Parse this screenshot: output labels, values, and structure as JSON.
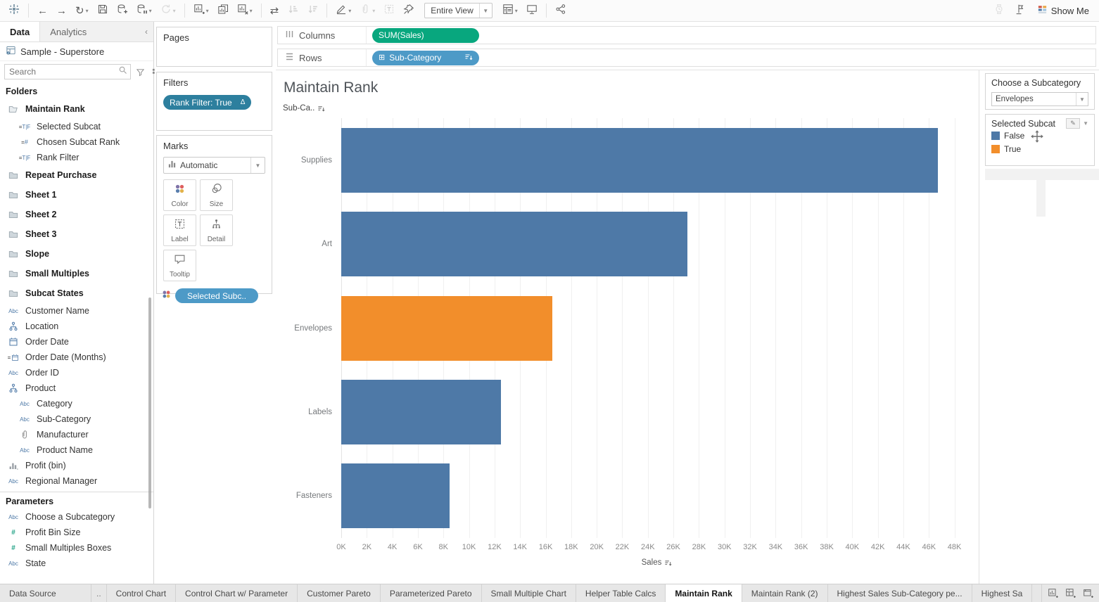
{
  "toolbar": {
    "left_icons": [
      {
        "name": "tableau-logo",
        "caret": false,
        "disabled": false,
        "group_after": true
      },
      {
        "name": "undo",
        "caret": false,
        "disabled": false
      },
      {
        "name": "redo",
        "caret": false,
        "disabled": false
      },
      {
        "name": "replay",
        "caret": true,
        "disabled": false
      },
      {
        "name": "save",
        "caret": false,
        "disabled": false
      },
      {
        "name": "add-data-source",
        "caret": false,
        "disabled": false
      },
      {
        "name": "pause-auto-updates",
        "caret": true,
        "disabled": false
      },
      {
        "name": "run-auto-updates",
        "caret": true,
        "disabled": true,
        "group_after": true
      },
      {
        "name": "new-worksheet",
        "caret": true,
        "disabled": false
      },
      {
        "name": "duplicate-sheet",
        "caret": false,
        "disabled": false
      },
      {
        "name": "clear-sheet",
        "caret": true,
        "disabled": false,
        "group_after": true
      },
      {
        "name": "swap-rows-columns",
        "caret": false,
        "disabled": false
      },
      {
        "name": "sort-ascending",
        "caret": false,
        "disabled": true
      },
      {
        "name": "sort-descending",
        "caret": false,
        "disabled": true,
        "group_after": true
      },
      {
        "name": "highlight",
        "caret": true,
        "disabled": false
      },
      {
        "name": "group-members",
        "caret": true,
        "disabled": true
      },
      {
        "name": "show-mark-labels",
        "caret": false,
        "disabled": true
      },
      {
        "name": "fix-axes",
        "caret": false,
        "disabled": false
      }
    ],
    "fit_selector": {
      "value": "Entire View"
    },
    "mid_icons": [
      {
        "name": "show-hide-cards",
        "caret": true,
        "disabled": false
      },
      {
        "name": "presentation-mode",
        "caret": false,
        "disabled": false,
        "group_after": true
      },
      {
        "name": "share-workbook",
        "caret": false,
        "disabled": false
      }
    ],
    "right_icons": [
      {
        "name": "watch-performance",
        "caret": false,
        "disabled": true
      },
      {
        "name": "flag",
        "caret": false,
        "disabled": false
      }
    ],
    "show_me_label": "Show Me"
  },
  "sidebar": {
    "tabs": [
      {
        "label": "Data",
        "active": true
      },
      {
        "label": "Analytics",
        "active": false
      }
    ],
    "collapse_glyph": "‹",
    "datasource": "Sample - Superstore",
    "search_placeholder": "Search",
    "folders_header": "Folders",
    "parameters_header": "Parameters",
    "items": [
      {
        "icon": "folder-open",
        "label": "Maintain Rank",
        "bold": true
      },
      {
        "icon": "calc-bool",
        "label": "Selected Subcat",
        "indent": 1
      },
      {
        "icon": "calc-num",
        "label": "Chosen Subcat Rank",
        "indent": 1
      },
      {
        "icon": "calc-bool",
        "label": "Rank Filter",
        "indent": 1
      },
      {
        "icon": "folder",
        "label": "Repeat Purchase",
        "bold": true
      },
      {
        "icon": "folder",
        "label": "Sheet 1",
        "bold": true
      },
      {
        "icon": "folder",
        "label": "Sheet 2",
        "bold": true
      },
      {
        "icon": "folder",
        "label": "Sheet 3",
        "bold": true
      },
      {
        "icon": "folder",
        "label": "Slope",
        "bold": true
      },
      {
        "icon": "folder",
        "label": "Small Multiples",
        "bold": true
      },
      {
        "icon": "folder",
        "label": "Subcat States",
        "bold": true
      },
      {
        "icon": "abc",
        "label": "Customer Name"
      },
      {
        "icon": "hierarchy",
        "label": "Location"
      },
      {
        "icon": "calendar",
        "label": "Order Date"
      },
      {
        "icon": "calendar-eq",
        "label": "Order Date (Months)"
      },
      {
        "icon": "abc",
        "label": "Order ID"
      },
      {
        "icon": "hierarchy",
        "label": "Product"
      },
      {
        "icon": "abc",
        "label": "Category",
        "indent": 1
      },
      {
        "icon": "abc",
        "label": "Sub-Category",
        "indent": 1
      },
      {
        "icon": "paperclip",
        "label": "Manufacturer",
        "indent": 1
      },
      {
        "icon": "abc",
        "label": "Product Name",
        "indent": 1
      },
      {
        "icon": "histogram",
        "label": "Profit (bin)"
      },
      {
        "icon": "abc",
        "label": "Regional Manager"
      }
    ],
    "parameters": [
      {
        "icon": "abc",
        "label": "Choose a Subcategory"
      },
      {
        "icon": "num",
        "label": "Profit Bin Size"
      },
      {
        "icon": "num",
        "label": "Small Multiples Boxes"
      },
      {
        "icon": "abc",
        "label": "State"
      }
    ]
  },
  "cards": {
    "pages": {
      "title": "Pages"
    },
    "filters": {
      "title": "Filters",
      "pill": {
        "label": "Rank Filter: True",
        "badge": "Δ"
      }
    },
    "marks": {
      "title": "Marks",
      "type_selector": "Automatic",
      "buttons": [
        {
          "label": "Color"
        },
        {
          "label": "Size"
        },
        {
          "label": "Label"
        },
        {
          "label": "Detail"
        },
        {
          "label": "Tooltip"
        }
      ],
      "pill": {
        "label": "Selected Subc.."
      }
    }
  },
  "shelves": {
    "columns": {
      "label": "Columns",
      "pill": {
        "label": "SUM(Sales)",
        "color": "#08a77e"
      }
    },
    "rows": {
      "label": "Rows",
      "pill": {
        "label": "Sub-Category",
        "color": "#4d9ac7"
      }
    }
  },
  "worksheet": {
    "title": "Maintain Rank",
    "row_header": "Sub-Ca.."
  },
  "chart_data": {
    "type": "bar",
    "orientation": "horizontal",
    "title": "Maintain Rank",
    "categories": [
      "Supplies",
      "Art",
      "Envelopes",
      "Labels",
      "Fasteners"
    ],
    "values": [
      46700,
      27100,
      16500,
      12500,
      8500
    ],
    "series_name": "SUM(Sales)",
    "highlighted": [
      false,
      false,
      true,
      false,
      false
    ],
    "bar_colors": [
      "#4e79a7",
      "#4e79a7",
      "#f28e2b",
      "#4e79a7",
      "#4e79a7"
    ],
    "xlabel": "Sales",
    "ylabel": "Sub-Category",
    "xlim": [
      0,
      49400
    ],
    "x_tick_step": 2000,
    "x_tick_max": 48000,
    "grid": true,
    "legend": {
      "title": "Selected Subcat",
      "entries": [
        {
          "label": "False",
          "color": "#4e79a7"
        },
        {
          "label": "True",
          "color": "#f28e2b"
        }
      ]
    }
  },
  "right_panel": {
    "parameter": {
      "title": "Choose a Subcategory",
      "value": "Envelopes"
    },
    "legend": {
      "title": "Selected Subcat",
      "items": [
        {
          "label": "False",
          "color": "#4e79a7"
        },
        {
          "label": "True",
          "color": "#f28e2b"
        }
      ]
    }
  },
  "bottom_tabs": {
    "tabs": [
      {
        "label": "Data Source",
        "first": true
      },
      {
        "label": "..",
        "scroll": true
      },
      {
        "label": "Control Chart"
      },
      {
        "label": "Control Chart w/ Parameter"
      },
      {
        "label": "Customer Pareto"
      },
      {
        "label": "Parameterized Pareto"
      },
      {
        "label": "Small Multiple Chart"
      },
      {
        "label": "Helper Table Calcs"
      },
      {
        "label": "Maintain Rank",
        "active": true
      },
      {
        "label": "Maintain Rank (2)"
      },
      {
        "label": "Highest Sales Sub-Category pe..."
      },
      {
        "label": "Highest Sa"
      }
    ],
    "new_icons": [
      {
        "name": "new-worksheet-tab"
      },
      {
        "name": "new-dashboard-tab"
      },
      {
        "name": "new-story-tab"
      }
    ]
  },
  "colors": {
    "bar_blue": "#4e79a7",
    "bar_orange": "#f28e2b",
    "pill_green": "#08a77e",
    "pill_blue": "#4d9ac7",
    "pill_filter": "#2d7f9e"
  }
}
